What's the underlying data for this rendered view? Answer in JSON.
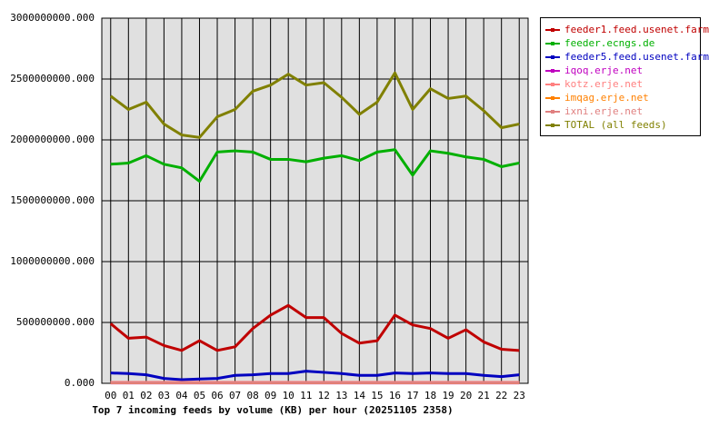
{
  "chart_data": {
    "type": "line",
    "title": "Top 7 incoming feeds by volume (KB) per hour (20251105 2358)",
    "categories": [
      "00",
      "01",
      "02",
      "03",
      "04",
      "05",
      "06",
      "07",
      "08",
      "09",
      "10",
      "11",
      "12",
      "13",
      "14",
      "15",
      "16",
      "17",
      "18",
      "19",
      "20",
      "21",
      "22",
      "23"
    ],
    "ylim": [
      0,
      3000000000
    ],
    "yticks": [
      {
        "value": 0,
        "label": "0.000"
      },
      {
        "value": 500000000,
        "label": "500000000.000"
      },
      {
        "value": 1000000000,
        "label": "1000000000.000"
      },
      {
        "value": 1500000000,
        "label": "1500000000.000"
      },
      {
        "value": 2000000000,
        "label": "2000000000.000"
      },
      {
        "value": 2500000000,
        "label": "2500000000.000"
      },
      {
        "value": 3000000000,
        "label": "3000000000.000"
      }
    ],
    "grid": true,
    "legend": "right",
    "series": [
      {
        "name": "feeder1.feed.usenet.farm",
        "color": "#c00000",
        "values": [
          490000000,
          370000000,
          380000000,
          310000000,
          270000000,
          350000000,
          270000000,
          300000000,
          450000000,
          560000000,
          640000000,
          540000000,
          540000000,
          410000000,
          330000000,
          350000000,
          560000000,
          480000000,
          450000000,
          370000000,
          440000000,
          340000000,
          280000000,
          270000000
        ]
      },
      {
        "name": "feeder.ecngs.de",
        "color": "#00b000",
        "values": [
          1800000000,
          1810000000,
          1870000000,
          1800000000,
          1770000000,
          1660000000,
          1900000000,
          1910000000,
          1900000000,
          1840000000,
          1840000000,
          1820000000,
          1850000000,
          1870000000,
          1830000000,
          1900000000,
          1920000000,
          1710000000,
          1910000000,
          1890000000,
          1860000000,
          1840000000,
          1780000000,
          1810000000
        ]
      },
      {
        "name": "feeder5.feed.usenet.farm",
        "color": "#0000c0",
        "values": [
          85000000,
          80000000,
          70000000,
          40000000,
          30000000,
          35000000,
          40000000,
          65000000,
          70000000,
          80000000,
          80000000,
          100000000,
          90000000,
          80000000,
          65000000,
          65000000,
          85000000,
          80000000,
          85000000,
          80000000,
          80000000,
          65000000,
          55000000,
          70000000
        ]
      },
      {
        "name": "iqoq.erje.net",
        "color": "#c000c0",
        "values": [
          3000000,
          3000000,
          3000000,
          3000000,
          3000000,
          3000000,
          3000000,
          3000000,
          3000000,
          3000000,
          3000000,
          3000000,
          3000000,
          3000000,
          3000000,
          3000000,
          3000000,
          3000000,
          3000000,
          3000000,
          3000000,
          3000000,
          3000000,
          3000000
        ]
      },
      {
        "name": "kotz.erje.net",
        "color": "#ff8080",
        "values": [
          8000000,
          8000000,
          8000000,
          8000000,
          8000000,
          8000000,
          8000000,
          8000000,
          8000000,
          8000000,
          8000000,
          8000000,
          8000000,
          8000000,
          8000000,
          8000000,
          8000000,
          8000000,
          8000000,
          8000000,
          8000000,
          8000000,
          8000000,
          8000000
        ]
      },
      {
        "name": "imqag.erje.net",
        "color": "#ff8000",
        "values": [
          4000000,
          4000000,
          4000000,
          4000000,
          4000000,
          4000000,
          4000000,
          4000000,
          4000000,
          4000000,
          4000000,
          4000000,
          4000000,
          4000000,
          4000000,
          4000000,
          4000000,
          4000000,
          4000000,
          4000000,
          4000000,
          4000000,
          4000000,
          4000000
        ]
      },
      {
        "name": "ixni.erje.net",
        "color": "#e08080",
        "values": [
          5000000,
          5000000,
          5000000,
          5000000,
          5000000,
          5000000,
          5000000,
          5000000,
          5000000,
          5000000,
          5000000,
          5000000,
          5000000,
          5000000,
          5000000,
          5000000,
          5000000,
          5000000,
          5000000,
          5000000,
          5000000,
          5000000,
          5000000,
          5000000
        ]
      },
      {
        "name": "TOTAL (all feeds)",
        "color": "#808000",
        "values": [
          2360000000,
          2250000000,
          2310000000,
          2130000000,
          2040000000,
          2020000000,
          2190000000,
          2250000000,
          2400000000,
          2450000000,
          2540000000,
          2450000000,
          2470000000,
          2350000000,
          2210000000,
          2310000000,
          2550000000,
          2250000000,
          2420000000,
          2340000000,
          2360000000,
          2240000000,
          2100000000,
          2130000000
        ]
      }
    ]
  }
}
